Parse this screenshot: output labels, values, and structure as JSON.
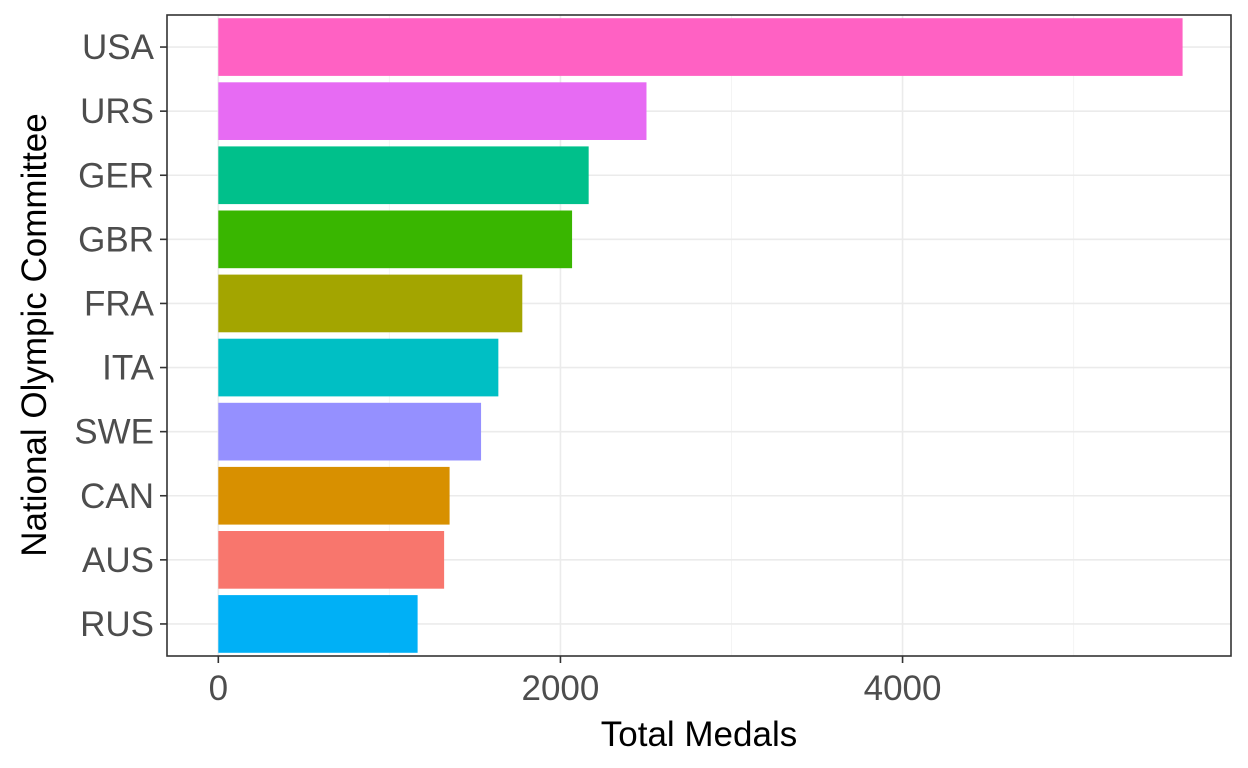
{
  "chart_data": {
    "type": "bar",
    "orientation": "horizontal",
    "xlabel": "Total Medals",
    "ylabel": "National Olympic Committee",
    "categories": [
      "USA",
      "URS",
      "GER",
      "GBR",
      "FRA",
      "ITA",
      "SWE",
      "CAN",
      "AUS",
      "RUS"
    ],
    "values": [
      5637,
      2503,
      2165,
      2068,
      1777,
      1637,
      1536,
      1352,
      1320,
      1165
    ],
    "colors": [
      "#FF61C3",
      "#E76BF3",
      "#00C08B",
      "#39B600",
      "#A3A500",
      "#00BFC4",
      "#9590FF",
      "#D89000",
      "#F8766D",
      "#00B0F6"
    ],
    "x_ticks": [
      "0",
      "2000",
      "4000"
    ],
    "xlim": [
      -300,
      5920
    ],
    "grid": true,
    "legend": "none"
  }
}
